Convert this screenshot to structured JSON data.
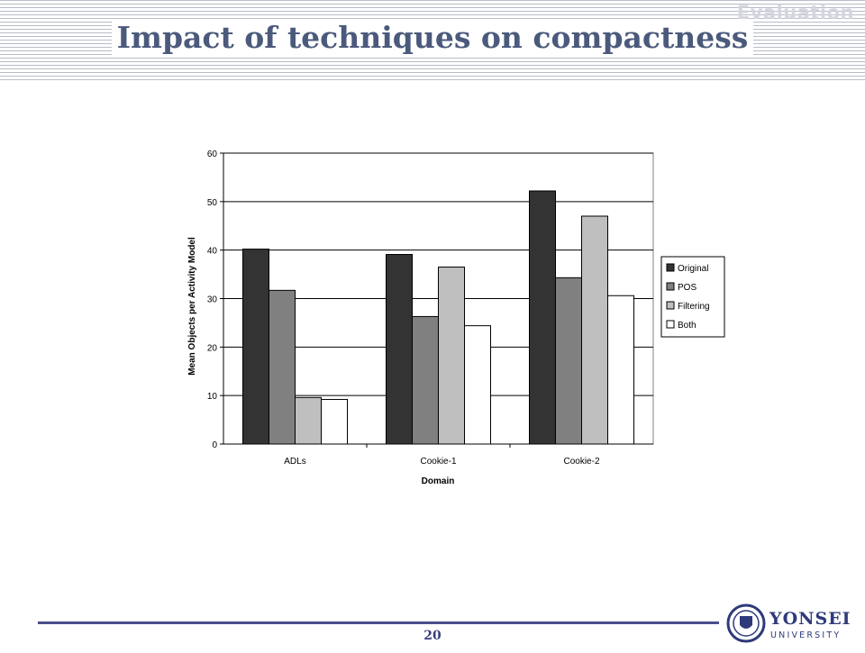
{
  "header": {
    "section_label": "Evaluation",
    "title": "Impact of techniques on compactness"
  },
  "footer": {
    "page_number": "20",
    "logo_name": "YONSEI",
    "logo_sub": "UNIVERSITY"
  },
  "colors": {
    "title": "#4b5a7c",
    "original": "#333333",
    "pos": "#808080",
    "filtering": "#bfbfbf",
    "both": "#ffffff",
    "footer": "#4b4f8c"
  },
  "chart_data": {
    "type": "bar",
    "categories": [
      "ADLs",
      "Cookie-1",
      "Cookie-2"
    ],
    "series": [
      {
        "name": "Original",
        "values": [
          40.2,
          39.1,
          52.2
        ]
      },
      {
        "name": "POS",
        "values": [
          31.7,
          26.3,
          34.3
        ]
      },
      {
        "name": "Filtering",
        "values": [
          9.6,
          36.5,
          47
        ]
      },
      {
        "name": "Both",
        "values": [
          9.2,
          24.4,
          30.6
        ]
      }
    ],
    "xlabel": "Domain",
    "ylabel": "Mean Objects per Activity Model",
    "ylim": [
      0,
      60
    ],
    "yticks": [
      "0",
      "10",
      "20",
      "30",
      "40",
      "50",
      "60"
    ],
    "grid": true,
    "legend_position": "right"
  }
}
